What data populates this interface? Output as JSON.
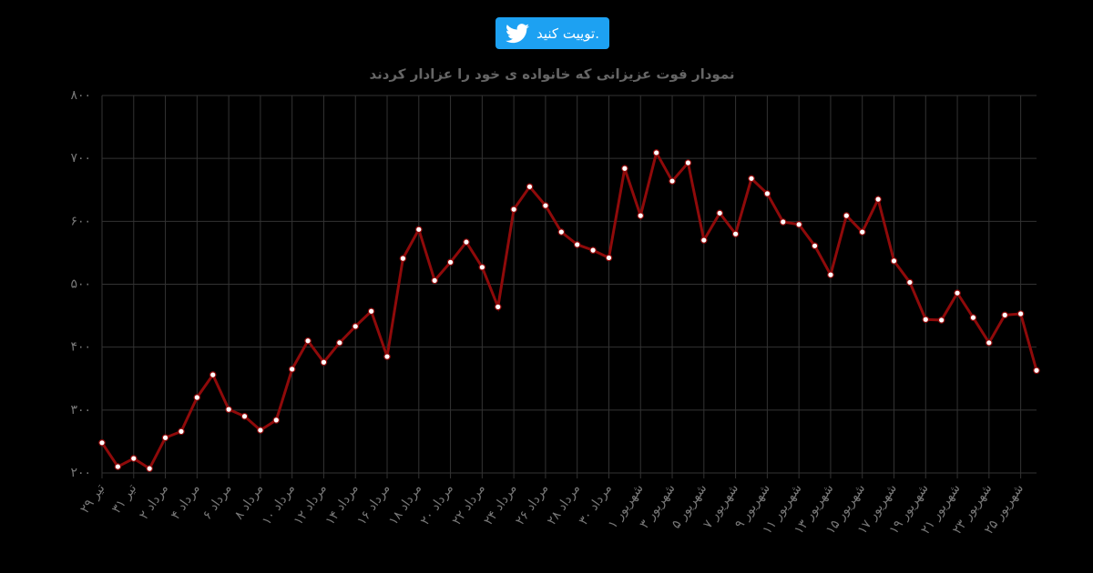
{
  "tweet_button": {
    "label": "توییت کنید."
  },
  "chart_data": {
    "type": "line",
    "title": "نمودار فوت عزیزانی که خانواده ی خود را عزادار کردند",
    "categories": [
      "۲۹ تیر",
      null,
      "۳۱ تیر",
      null,
      "۲ مرداد",
      null,
      "۴ مرداد",
      null,
      "۶ مرداد",
      null,
      "۸ مرداد",
      null,
      "۱۰ مرداد",
      null,
      "۱۲ مرداد",
      null,
      "۱۴ مرداد",
      null,
      "۱۶ مرداد",
      null,
      "۱۸ مرداد",
      null,
      "۲۰ مرداد",
      null,
      "۲۲ مرداد",
      null,
      "۲۴ مرداد",
      null,
      "۲۶ مرداد",
      null,
      "۲۸ مرداد",
      null,
      "۳۰ مرداد",
      null,
      "۱ شهریور",
      null,
      "۳ شهریور",
      null,
      "۵ شهریور",
      null,
      "۷ شهریور",
      null,
      "۹ شهریور",
      null,
      "۱۱ شهریور",
      null,
      "۱۳ شهریور",
      null,
      "۱۵ شهریور",
      null,
      "۱۷ شهریور",
      null,
      "۱۹ شهریور",
      null,
      "۲۱ شهریور",
      null,
      "۲۳ شهریور",
      null,
      "۲۵ شهریور",
      null
    ],
    "values": [
      248,
      210,
      223,
      207,
      256,
      266,
      320,
      356,
      301,
      290,
      268,
      284,
      365,
      410,
      376,
      407,
      433,
      457,
      385,
      541,
      587,
      506,
      535,
      567,
      527,
      464,
      619,
      655,
      625,
      583,
      563,
      554,
      542,
      684,
      609,
      709,
      664,
      693,
      570,
      613,
      580,
      668,
      644,
      599,
      595,
      561,
      515,
      609,
      583,
      635,
      537,
      503,
      444,
      443,
      486,
      447,
      407,
      451,
      453,
      363
    ],
    "color": "#8f0a0a",
    "ylim": [
      200,
      800
    ],
    "yticks": [
      {
        "value": 200,
        "label": "۲۰۰"
      },
      {
        "value": 300,
        "label": "۳۰۰"
      },
      {
        "value": 400,
        "label": "۴۰۰"
      },
      {
        "value": 500,
        "label": "۵۰۰"
      },
      {
        "value": 600,
        "label": "۶۰۰"
      },
      {
        "value": 700,
        "label": "۷۰۰"
      },
      {
        "value": 800,
        "label": "۸۰۰"
      }
    ],
    "grid": true
  }
}
